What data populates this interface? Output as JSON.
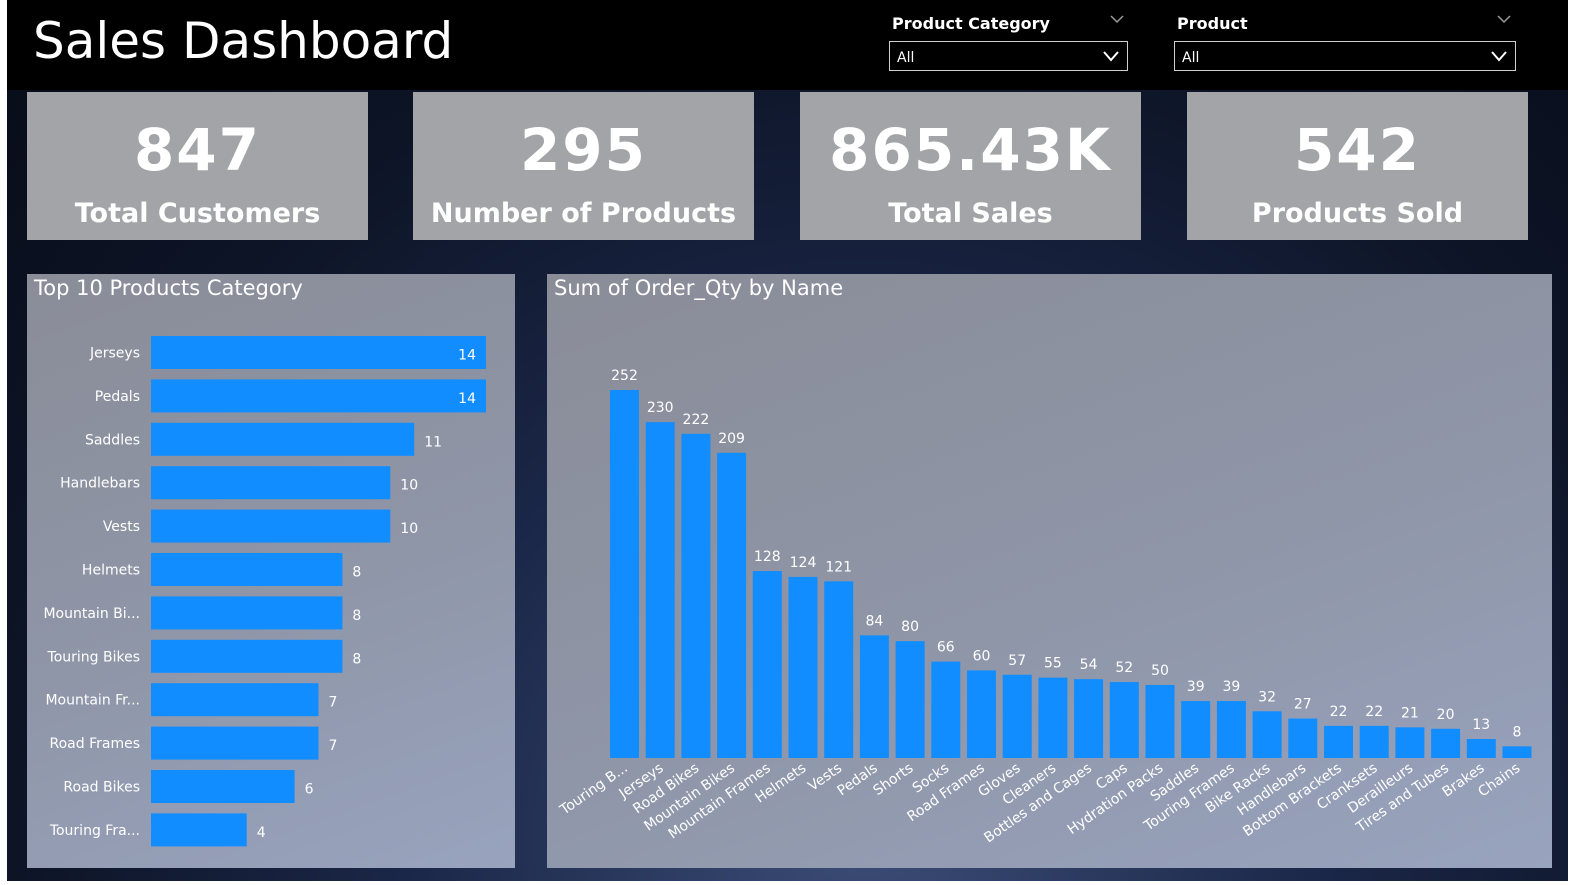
{
  "header": {
    "title": "Sales Dashboard"
  },
  "slicers": [
    {
      "label": "Product Category",
      "value": "All"
    },
    {
      "label": "Product",
      "value": "All"
    }
  ],
  "kpis": [
    {
      "value": "847",
      "label": "Total Customers"
    },
    {
      "value": "295",
      "label": "Number of Products"
    },
    {
      "value": "865.43K",
      "label": "Total Sales"
    },
    {
      "value": "542",
      "label": "Products Sold"
    }
  ],
  "colors": {
    "bar": "#118dff",
    "kpi_card": "#a3a4a8",
    "header": "#000000"
  },
  "chart_data": [
    {
      "type": "bar",
      "orientation": "horizontal",
      "title": "Top 10 Products Category",
      "categories": [
        "Jerseys",
        "Pedals",
        "Saddles",
        "Handlebars",
        "Vests",
        "Helmets",
        "Mountain Bi...",
        "Touring Bikes",
        "Mountain Fr...",
        "Road Frames",
        "Road Bikes",
        "Touring Fra..."
      ],
      "values": [
        14,
        14,
        11,
        10,
        10,
        8,
        8,
        8,
        7,
        7,
        6,
        4
      ],
      "xlim": [
        0,
        14
      ],
      "grid": false,
      "data_labels": true
    },
    {
      "type": "bar",
      "orientation": "vertical",
      "title": "Sum of Order_Qty by Name",
      "categories": [
        "Touring B...",
        "Jerseys",
        "Road Bikes",
        "Mountain Bikes",
        "Mountain Frames",
        "Helmets",
        "Vests",
        "Pedals",
        "Shorts",
        "Socks",
        "Road Frames",
        "Gloves",
        "Cleaners",
        "Bottles and Cages",
        "Caps",
        "Hydration Packs",
        "Saddles",
        "Touring Frames",
        "Bike Racks",
        "Handlebars",
        "Bottom Brackets",
        "Cranksets",
        "Derailleurs",
        "Tires and Tubes",
        "Brakes",
        "Chains"
      ],
      "values": [
        252,
        230,
        222,
        209,
        128,
        124,
        121,
        84,
        80,
        66,
        60,
        57,
        55,
        54,
        52,
        50,
        39,
        39,
        32,
        27,
        22,
        22,
        21,
        20,
        13,
        8
      ],
      "ylim": [
        0,
        252
      ],
      "grid": false,
      "data_labels": true
    }
  ]
}
